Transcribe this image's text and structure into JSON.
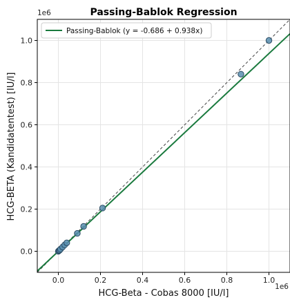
{
  "chart_data": {
    "type": "scatter",
    "title": "Passing-Bablok Regression",
    "xlabel": "HCG-Beta - Cobas 8000 [IU/l]",
    "ylabel": "HCG-BETA (Kandidatentest) [IU/l]",
    "x_offset_label": "1e6",
    "y_offset_label": "1e6",
    "xlim": [
      -0.1,
      1.1
    ],
    "ylim": [
      -0.1,
      1.1
    ],
    "x_ticks": [
      0.0,
      0.2,
      0.4,
      0.6,
      0.8,
      1.0
    ],
    "x_tick_labels": [
      "0.0",
      "0.2",
      "0.4",
      "0.6",
      "0.8",
      "1.0"
    ],
    "y_ticks": [
      0.0,
      0.2,
      0.4,
      0.6,
      0.8,
      1.0
    ],
    "y_tick_labels": [
      "0.0",
      "0.2",
      "0.4",
      "0.6",
      "0.8",
      "1.0"
    ],
    "grid": true,
    "legend_position": "top-left",
    "legend": [
      {
        "label": "Passing-Bablok (y = -0.686 + 0.938x)",
        "color": "#1a7a3e"
      }
    ],
    "regression": {
      "intercept": -0.686,
      "slope": 0.938,
      "color": "#1a7a3e"
    },
    "identity_line": {
      "color": "#444444"
    },
    "point_color": "#5b8fb0",
    "points": [
      {
        "x": 0.0,
        "y": 0.0
      },
      {
        "x": 0.003,
        "y": 0.003
      },
      {
        "x": 0.006,
        "y": 0.005
      },
      {
        "x": 0.01,
        "y": 0.01
      },
      {
        "x": 0.02,
        "y": 0.02
      },
      {
        "x": 0.03,
        "y": 0.03
      },
      {
        "x": 0.04,
        "y": 0.04
      },
      {
        "x": 0.09,
        "y": 0.085
      },
      {
        "x": 0.12,
        "y": 0.118
      },
      {
        "x": 0.21,
        "y": 0.205
      },
      {
        "x": 0.867,
        "y": 0.84
      },
      {
        "x": 1.0,
        "y": 1.0
      }
    ]
  }
}
